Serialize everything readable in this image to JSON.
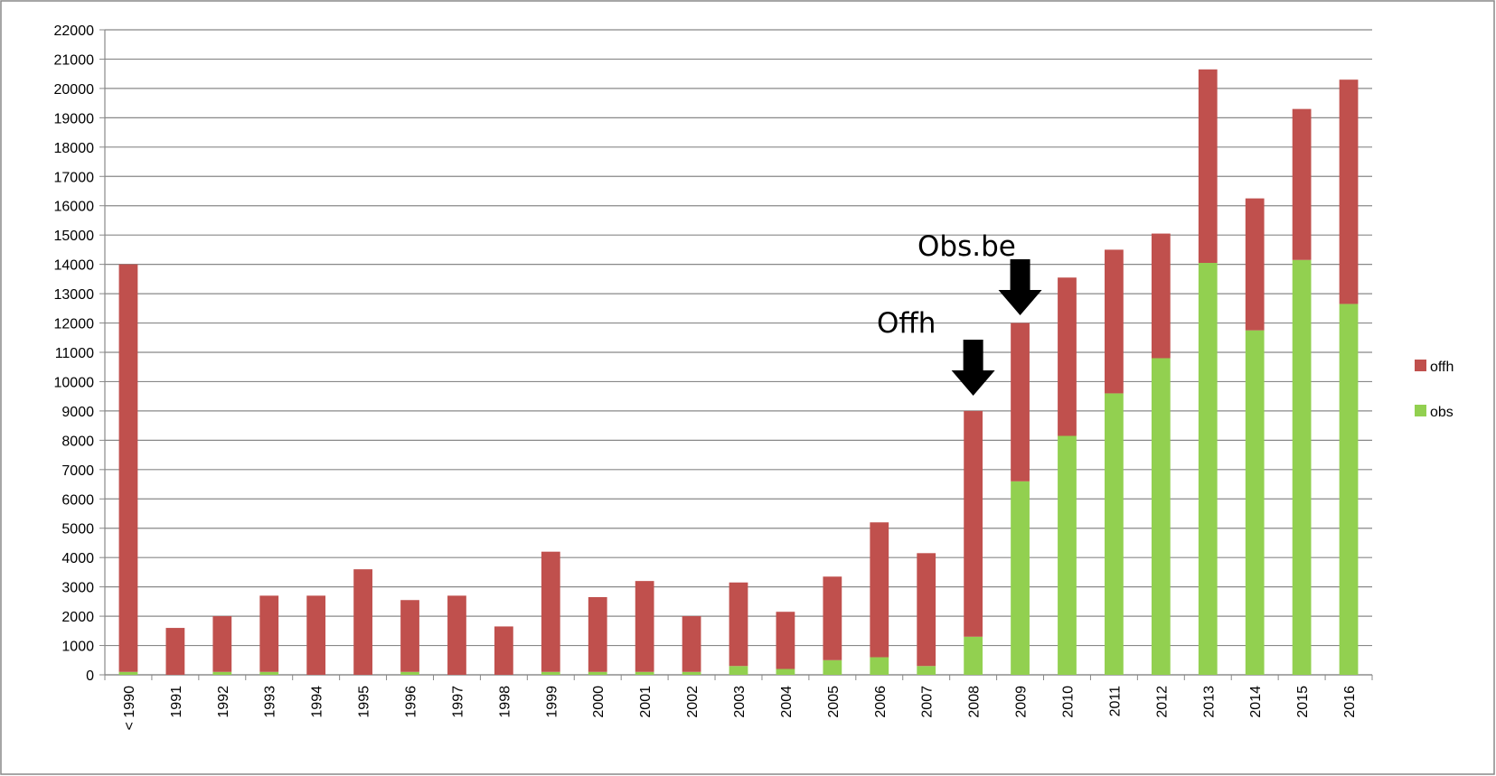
{
  "chart_data": {
    "type": "bar",
    "stacked": true,
    "categories": [
      "< 1990",
      "1991",
      "1992",
      "1993",
      "1994",
      "1995",
      "1996",
      "1997",
      "1998",
      "1999",
      "2000",
      "2001",
      "2002",
      "2003",
      "2004",
      "2005",
      "2006",
      "2007",
      "2008",
      "2009",
      "2010",
      "2011",
      "2012",
      "2013",
      "2014",
      "2015",
      "2016"
    ],
    "series": [
      {
        "name": "obs",
        "color": "#92d050",
        "values": [
          100,
          0,
          100,
          100,
          0,
          0,
          100,
          0,
          0,
          100,
          100,
          100,
          100,
          300,
          200,
          500,
          600,
          300,
          1300,
          6600,
          8150,
          9600,
          10800,
          14050,
          11750,
          14150,
          12650
        ]
      },
      {
        "name": "offh",
        "color": "#c0504d",
        "values": [
          13900,
          1600,
          1900,
          2600,
          2700,
          3600,
          2450,
          2700,
          1650,
          4100,
          2550,
          3100,
          1900,
          2850,
          1950,
          2850,
          4600,
          3850,
          7700,
          5400,
          5400,
          4900,
          4250,
          6600,
          4500,
          5150,
          7650
        ]
      }
    ],
    "ylim": [
      0,
      22000
    ],
    "yticks": [
      0,
      1000,
      2000,
      3000,
      4000,
      5000,
      6000,
      7000,
      8000,
      9000,
      10000,
      11000,
      12000,
      13000,
      14000,
      15000,
      16000,
      17000,
      18000,
      19000,
      20000,
      21000,
      22000
    ],
    "grid": true,
    "legend": "right",
    "annotations": [
      "Offh",
      "Obs.be"
    ]
  }
}
